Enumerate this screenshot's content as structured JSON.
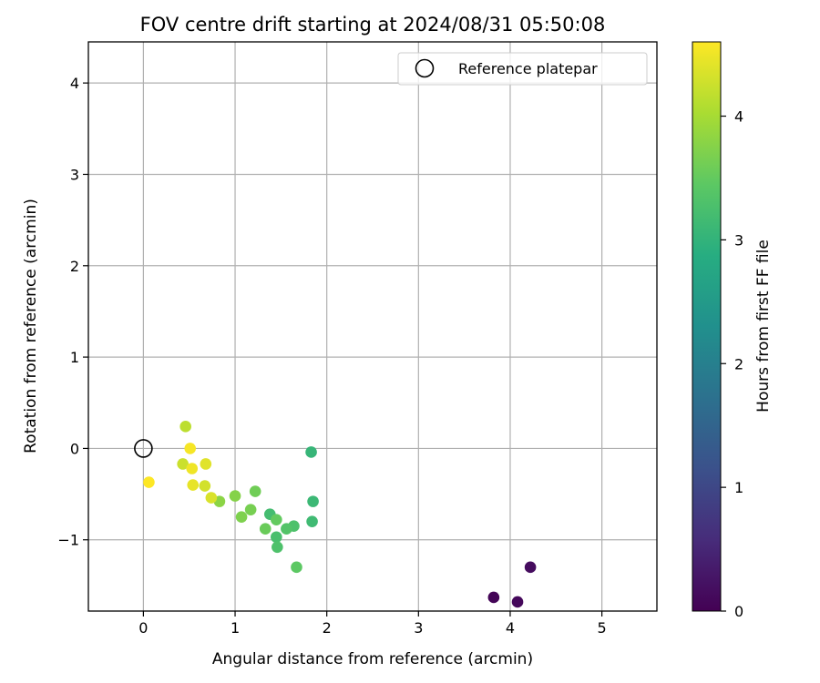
{
  "chart_data": {
    "type": "scatter",
    "title": "FOV centre drift starting at 2024/08/31 05:50:08",
    "xlabel": "Angular distance from reference (arcmin)",
    "ylabel": "Rotation from reference (arcmin)",
    "xlim": [
      -0.6,
      5.6
    ],
    "ylim": [
      -1.78,
      4.45
    ],
    "xticks": [
      0,
      1,
      2,
      3,
      4,
      5
    ],
    "xtick_labels": [
      "0",
      "1",
      "2",
      "3",
      "4",
      "5"
    ],
    "yticks": [
      -1,
      0,
      1,
      2,
      3,
      4
    ],
    "ytick_labels": [
      "−1",
      "0",
      "1",
      "2",
      "3",
      "4"
    ],
    "grid": true,
    "legend": {
      "placement": "upper right",
      "entries": [
        "Reference platepar"
      ]
    },
    "reference_point": {
      "label": "Reference platepar",
      "x": 0,
      "y": 0,
      "marker": "open-circle"
    },
    "colorbar": {
      "label": "Hours from first FF file",
      "colormap": "viridis",
      "range": [
        0,
        4.6
      ],
      "ticks": [
        0,
        1,
        2,
        3,
        4
      ],
      "tick_labels": [
        "0",
        "1",
        "2",
        "3",
        "4"
      ]
    },
    "points": [
      {
        "x": 3.82,
        "y": -1.63,
        "hours": 0.05
      },
      {
        "x": 4.08,
        "y": -1.68,
        "hours": 0.1
      },
      {
        "x": 4.22,
        "y": -1.3,
        "hours": 0.15
      },
      {
        "x": 1.83,
        "y": -0.04,
        "hours": 3.05
      },
      {
        "x": 1.85,
        "y": -0.58,
        "hours": 3.1
      },
      {
        "x": 1.84,
        "y": -0.8,
        "hours": 3.15
      },
      {
        "x": 1.38,
        "y": -0.72,
        "hours": 3.2
      },
      {
        "x": 1.45,
        "y": -0.97,
        "hours": 3.25
      },
      {
        "x": 1.46,
        "y": -1.08,
        "hours": 3.3
      },
      {
        "x": 1.64,
        "y": -0.85,
        "hours": 3.3
      },
      {
        "x": 1.56,
        "y": -0.88,
        "hours": 3.35
      },
      {
        "x": 1.67,
        "y": -1.3,
        "hours": 3.45
      },
      {
        "x": 1.45,
        "y": -0.78,
        "hours": 3.5
      },
      {
        "x": 1.33,
        "y": -0.88,
        "hours": 3.55
      },
      {
        "x": 1.22,
        "y": -0.47,
        "hours": 3.6
      },
      {
        "x": 1.17,
        "y": -0.67,
        "hours": 3.65
      },
      {
        "x": 1.07,
        "y": -0.75,
        "hours": 3.7
      },
      {
        "x": 1.0,
        "y": -0.52,
        "hours": 3.75
      },
      {
        "x": 0.83,
        "y": -0.58,
        "hours": 3.8
      },
      {
        "x": 0.46,
        "y": 0.24,
        "hours": 4.15
      },
      {
        "x": 0.43,
        "y": -0.17,
        "hours": 4.25
      },
      {
        "x": 0.67,
        "y": -0.41,
        "hours": 4.3
      },
      {
        "x": 0.74,
        "y": -0.54,
        "hours": 4.35
      },
      {
        "x": 0.68,
        "y": -0.17,
        "hours": 4.4
      },
      {
        "x": 0.54,
        "y": -0.4,
        "hours": 4.45
      },
      {
        "x": 0.53,
        "y": -0.22,
        "hours": 4.5
      },
      {
        "x": 0.51,
        "y": 0.0,
        "hours": 4.55
      },
      {
        "x": 0.06,
        "y": -0.37,
        "hours": 4.6
      }
    ]
  }
}
